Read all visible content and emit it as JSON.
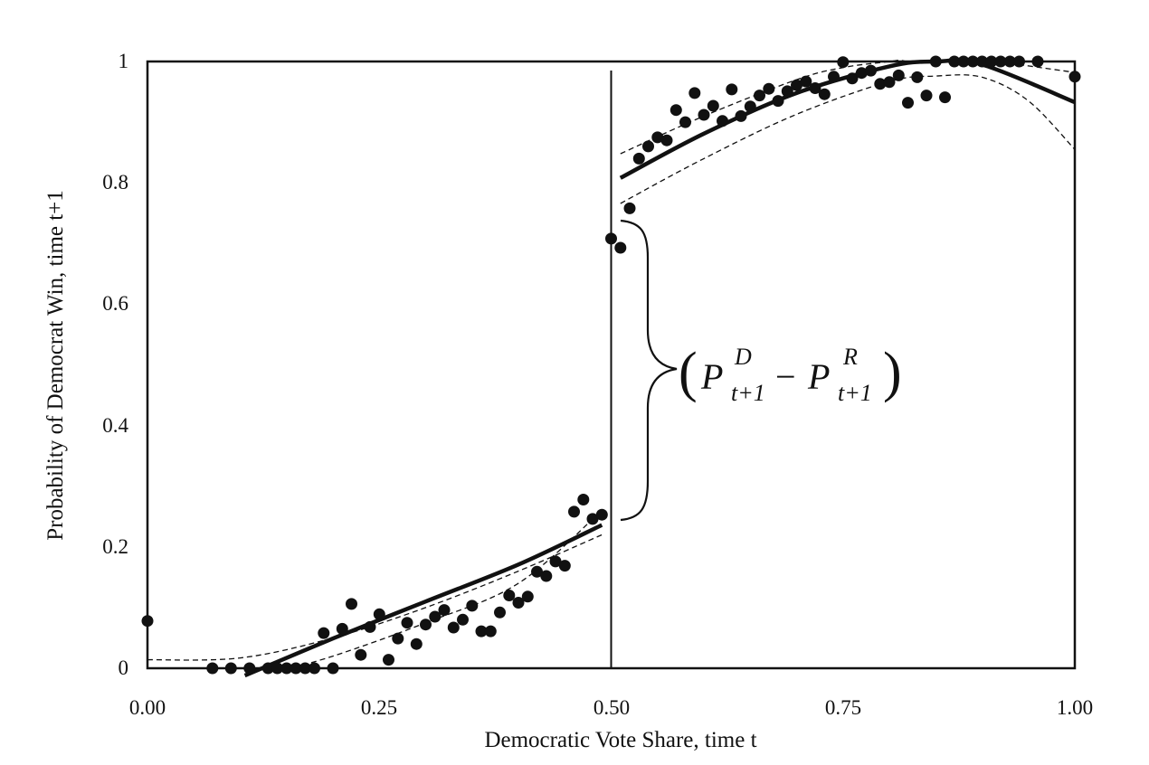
{
  "chart_data": {
    "type": "scatter",
    "xlabel": "Democratic Vote Share, time t",
    "ylabel": "Probability of Democrat Win, time t+1",
    "xlim": [
      0,
      1
    ],
    "ylim": [
      0,
      1
    ],
    "x_ticks": [
      "0.00",
      "0.25",
      "0.50",
      "0.75",
      "1.00"
    ],
    "y_ticks": [
      "0",
      "0.2",
      "0.4",
      "0.6",
      "0.8",
      "1"
    ],
    "threshold_x": 0.5,
    "grid": false,
    "legend": "none",
    "annotation": {
      "P": "P",
      "D_sup": "D",
      "R_sup": "R",
      "sub": "t+1",
      "minus": "−"
    },
    "points": [
      [
        0.0,
        0.078
      ],
      [
        0.07,
        0.0
      ],
      [
        0.09,
        0.0
      ],
      [
        0.11,
        0.0
      ],
      [
        0.13,
        0.0
      ],
      [
        0.14,
        0.0
      ],
      [
        0.15,
        0.0
      ],
      [
        0.16,
        0.0
      ],
      [
        0.17,
        0.0
      ],
      [
        0.18,
        0.0
      ],
      [
        0.19,
        0.058
      ],
      [
        0.2,
        0.0
      ],
      [
        0.21,
        0.065
      ],
      [
        0.22,
        0.106
      ],
      [
        0.23,
        0.022
      ],
      [
        0.24,
        0.068
      ],
      [
        0.25,
        0.089
      ],
      [
        0.26,
        0.014
      ],
      [
        0.27,
        0.049
      ],
      [
        0.28,
        0.075
      ],
      [
        0.29,
        0.04
      ],
      [
        0.3,
        0.072
      ],
      [
        0.31,
        0.085
      ],
      [
        0.32,
        0.096
      ],
      [
        0.33,
        0.067
      ],
      [
        0.34,
        0.08
      ],
      [
        0.35,
        0.103
      ],
      [
        0.36,
        0.061
      ],
      [
        0.37,
        0.061
      ],
      [
        0.38,
        0.092
      ],
      [
        0.39,
        0.12
      ],
      [
        0.4,
        0.108
      ],
      [
        0.41,
        0.118
      ],
      [
        0.42,
        0.159
      ],
      [
        0.43,
        0.152
      ],
      [
        0.44,
        0.176
      ],
      [
        0.45,
        0.169
      ],
      [
        0.46,
        0.258
      ],
      [
        0.47,
        0.278
      ],
      [
        0.48,
        0.246
      ],
      [
        0.49,
        0.253
      ],
      [
        0.5,
        0.708
      ],
      [
        0.51,
        0.693
      ],
      [
        0.52,
        0.758
      ],
      [
        0.53,
        0.84
      ],
      [
        0.54,
        0.86
      ],
      [
        0.55,
        0.875
      ],
      [
        0.56,
        0.87
      ],
      [
        0.57,
        0.92
      ],
      [
        0.58,
        0.9
      ],
      [
        0.59,
        0.948
      ],
      [
        0.6,
        0.912
      ],
      [
        0.61,
        0.927
      ],
      [
        0.62,
        0.902
      ],
      [
        0.63,
        0.954
      ],
      [
        0.64,
        0.91
      ],
      [
        0.65,
        0.926
      ],
      [
        0.66,
        0.944
      ],
      [
        0.67,
        0.955
      ],
      [
        0.68,
        0.935
      ],
      [
        0.69,
        0.951
      ],
      [
        0.7,
        0.961
      ],
      [
        0.71,
        0.967
      ],
      [
        0.72,
        0.956
      ],
      [
        0.73,
        0.946
      ],
      [
        0.74,
        0.975
      ],
      [
        0.75,
        0.999
      ],
      [
        0.76,
        0.972
      ],
      [
        0.77,
        0.981
      ],
      [
        0.78,
        0.985
      ],
      [
        0.79,
        0.963
      ],
      [
        0.8,
        0.966
      ],
      [
        0.81,
        0.977
      ],
      [
        0.82,
        0.932
      ],
      [
        0.83,
        0.974
      ],
      [
        0.84,
        0.944
      ],
      [
        0.85,
        1.0
      ],
      [
        0.86,
        0.941
      ],
      [
        0.87,
        1.0
      ],
      [
        0.88,
        1.0
      ],
      [
        0.89,
        1.0
      ],
      [
        0.9,
        1.0
      ],
      [
        0.91,
        1.0
      ],
      [
        0.92,
        1.0
      ],
      [
        0.93,
        1.0
      ],
      [
        0.94,
        1.0
      ],
      [
        0.96,
        1.0
      ],
      [
        1.0,
        0.975
      ]
    ],
    "fit_left": [
      [
        0.105,
        -0.012
      ],
      [
        0.2,
        0.049
      ],
      [
        0.3,
        0.11
      ],
      [
        0.4,
        0.171
      ],
      [
        0.49,
        0.236
      ]
    ],
    "ci_left_upper": [
      [
        0.0,
        0.014
      ],
      [
        0.1,
        0.017
      ],
      [
        0.2,
        0.05
      ],
      [
        0.3,
        0.1
      ],
      [
        0.4,
        0.16
      ],
      [
        0.49,
        0.22
      ]
    ],
    "ci_left_lower": [
      [
        0.12,
        -0.014
      ],
      [
        0.2,
        0.02
      ],
      [
        0.3,
        0.075
      ],
      [
        0.4,
        0.14
      ],
      [
        0.49,
        0.26
      ]
    ],
    "fit_right": [
      [
        0.51,
        0.808
      ],
      [
        0.6,
        0.881
      ],
      [
        0.7,
        0.948
      ],
      [
        0.8,
        0.992
      ],
      [
        0.85,
        1.0
      ],
      [
        0.9,
        0.995
      ],
      [
        1.0,
        0.933
      ]
    ],
    "ci_right_upper": [
      [
        0.51,
        0.848
      ],
      [
        0.6,
        0.91
      ],
      [
        0.7,
        0.97
      ],
      [
        0.75,
        0.99
      ],
      [
        0.8,
        1.0
      ],
      [
        0.85,
        1.01
      ],
      [
        0.9,
        1.003
      ],
      [
        1.0,
        0.982
      ]
    ],
    "ci_right_lower": [
      [
        0.51,
        0.766
      ],
      [
        0.6,
        0.84
      ],
      [
        0.7,
        0.913
      ],
      [
        0.8,
        0.967
      ],
      [
        0.85,
        0.976
      ],
      [
        0.9,
        0.974
      ],
      [
        0.95,
        0.935
      ],
      [
        1.0,
        0.855
      ]
    ]
  }
}
